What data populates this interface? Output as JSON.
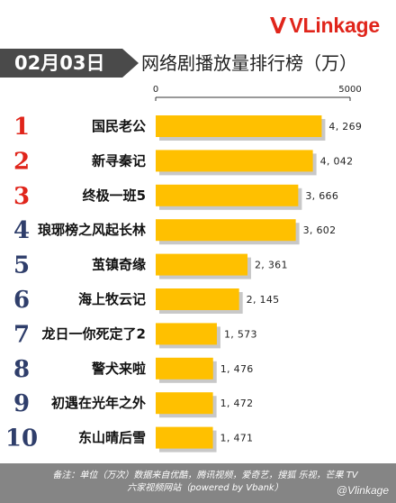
{
  "brand": {
    "name": "VLinkage",
    "mark_color": "#e0251b"
  },
  "header": {
    "date": "02月03日",
    "title": "网络剧播放量排行榜（万）"
  },
  "colors": {
    "bar_fill": "#ffc000",
    "bar_shadow": "#9b9b9b",
    "rank_top3": "#e0251b",
    "rank_rest": "#2f3e6b",
    "footer_bg": "#858585"
  },
  "footer": {
    "line1": "备注：单位（万次）数据来自优酷，腾讯视频，爱奇艺，搜狐 乐视，芒果 TV",
    "line2": "六家视频网站（powered by Vbank）",
    "watermark": "@Vlinkage"
  },
  "chart_data": {
    "type": "bar",
    "orientation": "horizontal",
    "title": "网络剧播放量排行榜（万）",
    "xlim": [
      0,
      5000
    ],
    "xticks": [
      "0",
      "5000"
    ],
    "grid": false,
    "ranks": [
      "1",
      "2",
      "3",
      "4",
      "5",
      "6",
      "7",
      "8",
      "9",
      "10"
    ],
    "categories": [
      "国民老公",
      "新寻秦记",
      "终极一班5",
      "琅琊榜之风起长林",
      "茧镇奇缘",
      "海上牧云记",
      "龙日一你死定了2",
      "警犬来啦",
      "初遇在光年之外",
      "东山晴后雪"
    ],
    "values": [
      4269,
      4042,
      3666,
      3602,
      2361,
      2145,
      1573,
      1476,
      1472,
      1471
    ],
    "value_labels": [
      "4, 269",
      "4, 042",
      "3, 666",
      "3, 602",
      "2, 361",
      "2, 145",
      "1, 573",
      "1, 476",
      "1, 472",
      "1, 471"
    ]
  }
}
